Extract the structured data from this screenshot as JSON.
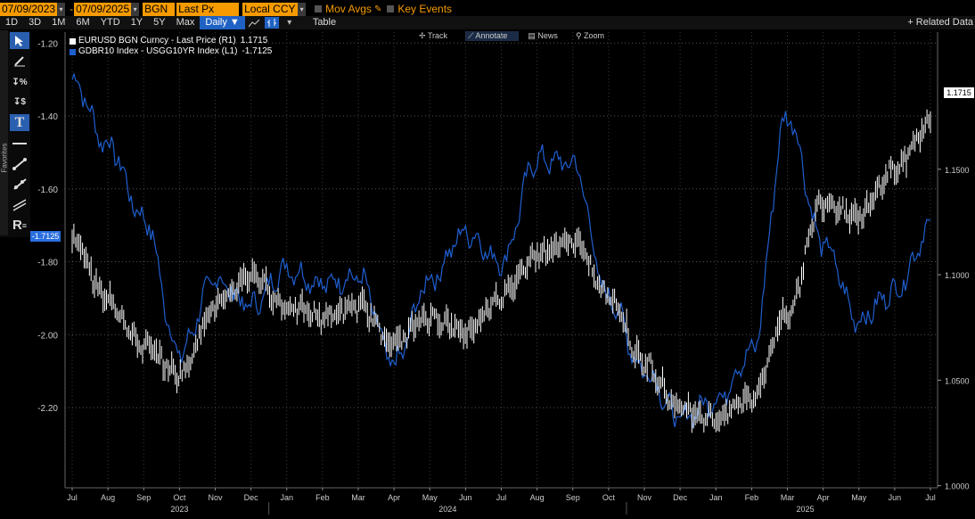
{
  "toolbar1": {
    "start_date": "07/09/2023",
    "end_date": "07/09/2025",
    "source": "BGN",
    "price_field": "Last Px",
    "currency": "Local CCY",
    "mov_avgs": "Mov Avgs",
    "key_events": "Key Events"
  },
  "toolbar2": {
    "ranges": [
      "1D",
      "3D",
      "1M",
      "6M",
      "YTD",
      "1Y",
      "5Y",
      "Max"
    ],
    "frequency": "Daily ▼",
    "table_label": "Table",
    "related": "+ Related Data"
  },
  "annotate_bar": {
    "track": "Track",
    "annotate": "Annotate",
    "news": "News",
    "zoom": "Zoom"
  },
  "palette": {
    "favorites": "Favorites",
    "tools": [
      "cursor-icon",
      "pen-icon",
      "percent-arrow-icon",
      "dollar-arrow-icon",
      "text-tool-icon",
      "horizontal-line-icon",
      "trend-line-icon",
      "ray-line-icon",
      "channel-icon",
      "fib-icon"
    ]
  },
  "colors": {
    "eur_series": "#ffffff",
    "bund_series": "#1f5fd0",
    "accent": "#f59b00"
  },
  "chart_data": {
    "type": "line",
    "legend": [
      {
        "name": "EURUSD BGN Curncy - Last Price (R1)",
        "last": "1.1715",
        "color": "#ffffff"
      },
      {
        "name": "GDBR10 Index - USGG10YR Index (L1)",
        "last": "-1.7125",
        "color": "#1f5fd0"
      }
    ],
    "left_axis": {
      "ticks": [
        "-1.20",
        "-1.40",
        "-1.60",
        "-1.80",
        "-2.00",
        "-2.20"
      ],
      "ylim": [
        -2.42,
        -1.17
      ]
    },
    "right_axis": {
      "ticks": [
        "1.1500",
        "1.1000",
        "1.0500",
        "1.0000"
      ],
      "ylim": [
        0.999,
        1.215
      ]
    },
    "left_last_tag": "-1.7125",
    "right_last_tag": "1.1715",
    "months": [
      "Jul",
      "Aug",
      "Sep",
      "Oct",
      "Nov",
      "Dec",
      "Jan",
      "Feb",
      "Mar",
      "Apr",
      "May",
      "Jun",
      "Jul",
      "Aug",
      "Sep",
      "Oct",
      "Nov",
      "Dec",
      "Jan",
      "Feb",
      "Mar",
      "Apr",
      "May",
      "Jun",
      "Jul"
    ],
    "years": [
      "2023",
      "2024",
      "2025"
    ],
    "series": [
      {
        "name": "EURUSD BGN Curncy - Last Price (R1)",
        "x": [
          "2023-07",
          "2023-08",
          "2023-09",
          "2023-10",
          "2023-11",
          "2023-12",
          "2024-01",
          "2024-02",
          "2024-03",
          "2024-04",
          "2024-05",
          "2024-06",
          "2024-07",
          "2024-08",
          "2024-09",
          "2024-10",
          "2024-11",
          "2024-12",
          "2025-01",
          "2025-02",
          "2025-03",
          "2025-04",
          "2025-05",
          "2025-06",
          "2025-07"
        ],
        "values": [
          1.117,
          1.088,
          1.066,
          1.053,
          1.085,
          1.1,
          1.085,
          1.08,
          1.085,
          1.068,
          1.08,
          1.073,
          1.09,
          1.11,
          1.116,
          1.09,
          1.058,
          1.037,
          1.032,
          1.042,
          1.082,
          1.135,
          1.128,
          1.15,
          1.172
        ]
      },
      {
        "name": "GDBR10 Index - USGG10YR Index (L1)",
        "x": [
          "2023-07",
          "2023-08",
          "2023-09",
          "2023-10",
          "2023-11",
          "2023-12",
          "2024-01",
          "2024-02",
          "2024-03",
          "2024-04",
          "2024-05",
          "2024-06",
          "2024-07",
          "2024-08",
          "2024-09",
          "2024-10",
          "2024-11",
          "2024-12",
          "2025-01",
          "2025-02",
          "2025-03",
          "2025-04",
          "2025-05",
          "2025-06",
          "2025-07"
        ],
        "values": [
          -1.3,
          -1.48,
          -1.68,
          -2.05,
          -1.85,
          -1.92,
          -1.82,
          -1.86,
          -1.84,
          -2.08,
          -1.85,
          -1.72,
          -1.8,
          -1.52,
          -1.53,
          -1.9,
          -2.1,
          -2.23,
          -2.18,
          -2.05,
          -1.4,
          -1.75,
          -1.96,
          -1.88,
          -1.71
        ]
      }
    ]
  }
}
